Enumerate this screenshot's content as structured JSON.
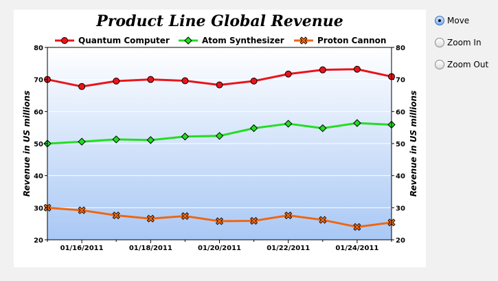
{
  "chart_data": {
    "type": "line",
    "title": "Product Line Global Revenue",
    "ylabel": "Revenue in US millions",
    "ylim": [
      20,
      80
    ],
    "y_ticks": [
      20,
      30,
      40,
      50,
      60,
      70,
      80
    ],
    "x": [
      "01/15/2011",
      "01/16/2011",
      "01/17/2011",
      "01/18/2011",
      "01/19/2011",
      "01/20/2011",
      "01/21/2011",
      "01/22/2011",
      "01/23/2011",
      "01/24/2011",
      "01/25/2011"
    ],
    "x_tick_labels": [
      "01/16/2011",
      "01/18/2011",
      "01/20/2011",
      "01/22/2011",
      "01/24/2011"
    ],
    "series": [
      {
        "name": "Quantum Computer",
        "color": "#e8141a",
        "marker": "circle",
        "values": [
          70.0,
          67.8,
          69.5,
          70.0,
          69.6,
          68.3,
          69.5,
          71.7,
          73.0,
          73.2,
          70.9
        ]
      },
      {
        "name": "Atom Synthesizer",
        "color": "#22dd22",
        "marker": "diamond",
        "values": [
          50.0,
          50.6,
          51.3,
          51.1,
          52.2,
          52.4,
          54.8,
          56.2,
          54.8,
          56.4,
          55.9
        ]
      },
      {
        "name": "Proton Cannon",
        "color": "#ee6611",
        "marker": "cross",
        "values": [
          30.0,
          29.2,
          27.6,
          26.6,
          27.4,
          25.8,
          25.9,
          27.6,
          26.2,
          24.0,
          25.4
        ]
      }
    ],
    "grid": true,
    "legend_position": "top"
  },
  "controls": {
    "options": [
      {
        "label": "Move",
        "checked": true
      },
      {
        "label": "Zoom In",
        "checked": false
      },
      {
        "label": "Zoom Out",
        "checked": false
      }
    ]
  }
}
